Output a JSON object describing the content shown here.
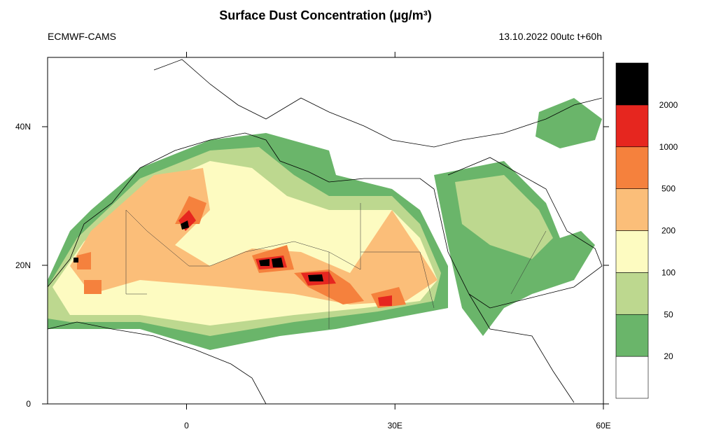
{
  "header": {
    "title": "Surface Dust Concentration (µg/m³)",
    "left": "ECMWF-CAMS",
    "right": "13.10.2022 00utc t+60h"
  },
  "map": {
    "xlim": [
      -20,
      60
    ],
    "ylim": [
      0,
      50
    ],
    "xticks": [
      0,
      {
        "value": 30,
        "label": "30E"
      },
      {
        "value": 60,
        "label": "60E"
      }
    ],
    "yticks": [
      0,
      {
        "value": 20,
        "label": "20N"
      },
      {
        "value": 40,
        "label": "40N"
      }
    ]
  },
  "colorbar": {
    "levels": [
      20,
      50,
      100,
      200,
      500,
      1000,
      2000
    ],
    "colors": [
      "#ffffff",
      "#6ab56a",
      "#bdd88f",
      "#fdfbc1",
      "#fbbe79",
      "#f5813d",
      "#e6261f",
      "#000000"
    ]
  }
}
